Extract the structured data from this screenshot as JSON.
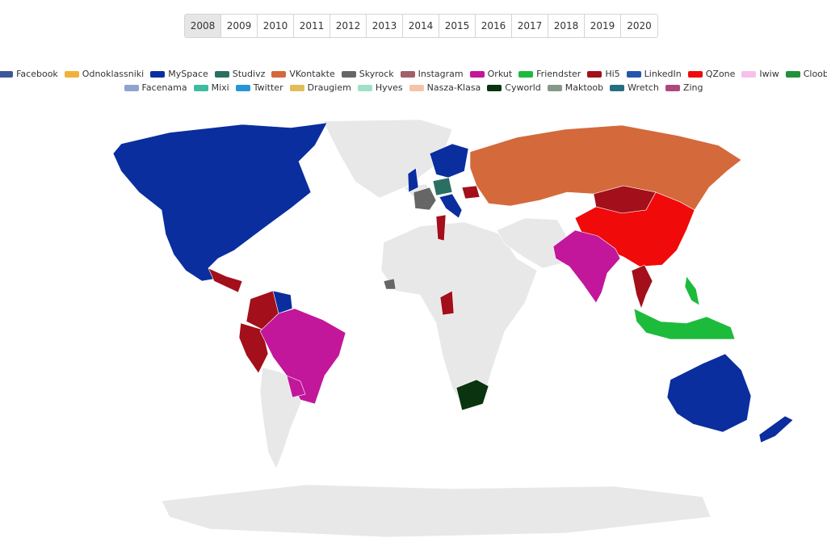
{
  "years": [
    "2008",
    "2009",
    "2010",
    "2011",
    "2012",
    "2013",
    "2014",
    "2015",
    "2016",
    "2017",
    "2018",
    "2019",
    "2020"
  ],
  "selected_year": "2008",
  "legend_row1": [
    {
      "name": "Facebook",
      "color": "#3b5998"
    },
    {
      "name": "Odnoklassniki",
      "color": "#f0b13b"
    },
    {
      "name": "MySpace",
      "color": "#0a2e9e"
    },
    {
      "name": "Studivz",
      "color": "#2b6f63"
    },
    {
      "name": "VKontakte",
      "color": "#d4693b"
    },
    {
      "name": "Skyrock",
      "color": "#666666"
    },
    {
      "name": "Instagram",
      "color": "#a0606a"
    },
    {
      "name": "Orkut",
      "color": "#c2169b"
    },
    {
      "name": "Friendster",
      "color": "#1dbb3c"
    },
    {
      "name": "Hi5",
      "color": "#a30f1a"
    },
    {
      "name": "LinkedIn",
      "color": "#2456b0"
    },
    {
      "name": "QZone",
      "color": "#f00a0a"
    },
    {
      "name": "Iwiw",
      "color": "#f5c1ea"
    },
    {
      "name": "Cloob",
      "color": "#23903a"
    }
  ],
  "legend_row2": [
    {
      "name": "Facenama",
      "color": "#8ea3cf"
    },
    {
      "name": "Mixi",
      "color": "#3bbd9e"
    },
    {
      "name": "Twitter",
      "color": "#2696d8"
    },
    {
      "name": "Draugiem",
      "color": "#e3bb58"
    },
    {
      "name": "Hyves",
      "color": "#9fe0c6"
    },
    {
      "name": "Nasza-Klasa",
      "color": "#f6c3a8"
    },
    {
      "name": "Cyworld",
      "color": "#0a3310"
    },
    {
      "name": "Maktoob",
      "color": "#869988"
    },
    {
      "name": "Wretch",
      "color": "#236f7f"
    },
    {
      "name": "Zing",
      "color": "#ad487e"
    }
  ],
  "map_data": {
    "no_data_color": "#e8e8e8",
    "regions": [
      {
        "name": "North America",
        "network": "MySpace"
      },
      {
        "name": "Greenland",
        "network": "none"
      },
      {
        "name": "Iceland",
        "network": "none"
      },
      {
        "name": "Central America",
        "network": "Hi5"
      },
      {
        "name": "Peru",
        "network": "Hi5"
      },
      {
        "name": "Colombia",
        "network": "Hi5"
      },
      {
        "name": "Venezuela",
        "network": "MySpace"
      },
      {
        "name": "Brazil",
        "network": "Orkut"
      },
      {
        "name": "Paraguay",
        "network": "Orkut"
      },
      {
        "name": "Southern South America",
        "network": "none"
      },
      {
        "name": "UK",
        "network": "MySpace"
      },
      {
        "name": "Scandinavia",
        "network": "MySpace"
      },
      {
        "name": "France",
        "network": "Skyrock"
      },
      {
        "name": "Germany",
        "network": "Studivz"
      },
      {
        "name": "Italy",
        "network": "MySpace"
      },
      {
        "name": "Romania",
        "network": "Hi5"
      },
      {
        "name": "Russia",
        "network": "VKontakte"
      },
      {
        "name": "Mongolia",
        "network": "Hi5"
      },
      {
        "name": "China",
        "network": "QZone"
      },
      {
        "name": "India",
        "network": "Orkut"
      },
      {
        "name": "Thailand",
        "network": "Hi5"
      },
      {
        "name": "Indonesia",
        "network": "Friendster"
      },
      {
        "name": "Philippines",
        "network": "Friendster"
      },
      {
        "name": "Africa",
        "network": "none"
      },
      {
        "name": "Cameroon",
        "network": "Hi5"
      },
      {
        "name": "Algeria",
        "network": "Hi5"
      },
      {
        "name": "Senegal",
        "network": "Skyrock"
      },
      {
        "name": "South Africa",
        "network": "Cyworld"
      },
      {
        "name": "Middle East",
        "network": "none"
      },
      {
        "name": "Australia",
        "network": "MySpace"
      },
      {
        "name": "New Zealand",
        "network": "MySpace"
      },
      {
        "name": "Antarctica",
        "network": "none"
      }
    ]
  }
}
